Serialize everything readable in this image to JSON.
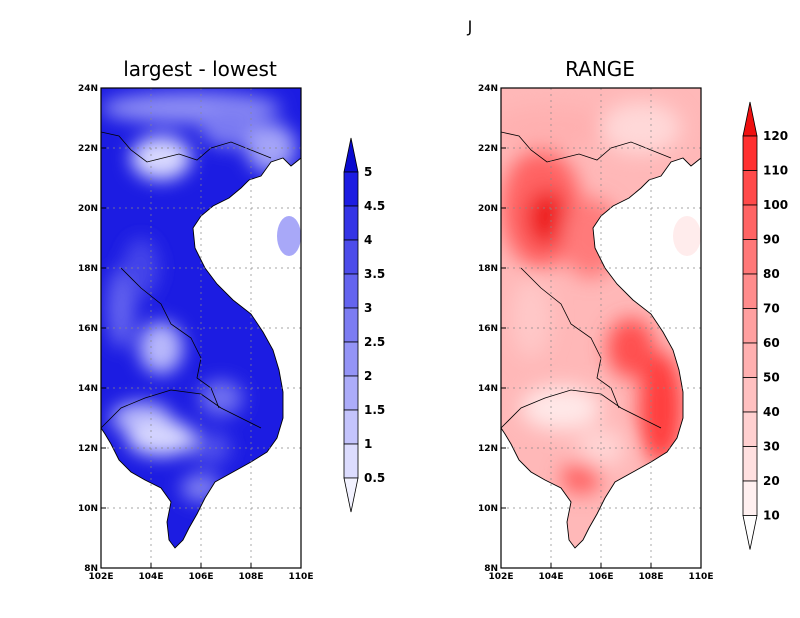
{
  "figure_title": "J",
  "left_panel": {
    "title": "largest - lowest",
    "x_ticks": [
      "102E",
      "104E",
      "106E",
      "108E",
      "110E"
    ],
    "y_ticks": [
      "8N",
      "10N",
      "12N",
      "14N",
      "16N",
      "18N",
      "20N",
      "22N",
      "24N"
    ],
    "colorbar_labels": [
      "0.5",
      "1",
      "1.5",
      "2",
      "2.5",
      "3",
      "3.5",
      "4",
      "4.5",
      "5"
    ],
    "colorbar_colors": [
      "#f2f2ff",
      "#dcdcfe",
      "#c4c4fc",
      "#acacf9",
      "#9494f6",
      "#7c7cf2",
      "#6464ef",
      "#4c4cea",
      "#3434e6",
      "#1c1ce2",
      "#0a0acf"
    ]
  },
  "right_panel": {
    "title": "RANGE",
    "x_ticks": [
      "102E",
      "104E",
      "106E",
      "108E",
      "110E"
    ],
    "y_ticks": [
      "8N",
      "10N",
      "12N",
      "14N",
      "16N",
      "18N",
      "20N",
      "22N",
      "24N"
    ],
    "colorbar_labels": [
      "10",
      "20",
      "30",
      "40",
      "50",
      "60",
      "70",
      "80",
      "90",
      "100",
      "110",
      "120"
    ],
    "colorbar_colors": [
      "#ffffff",
      "#fff0f0",
      "#ffe0e0",
      "#ffd0d0",
      "#ffc0c0",
      "#ffb0b0",
      "#ffa0a0",
      "#ff8c8c",
      "#ff7878",
      "#ff6464",
      "#ff4a4a",
      "#ff3030",
      "#ee1010"
    ]
  }
}
